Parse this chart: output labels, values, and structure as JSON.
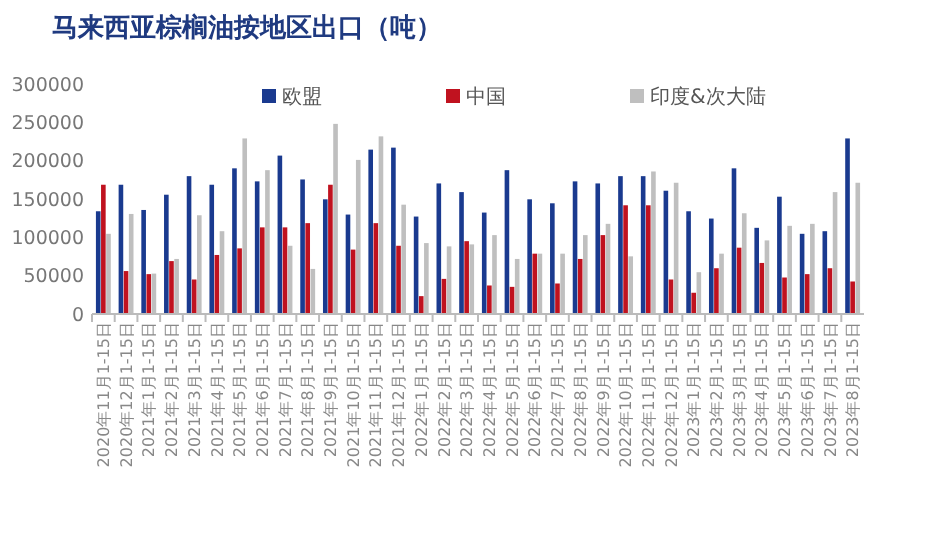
{
  "chart_data": {
    "type": "bar",
    "title": "马来西亚棕榈油按地区出口（吨）",
    "categories": [
      "2020年11月1-15日",
      "2020年12月1-15日",
      "2021年1月1-15日",
      "2021年2月1-15日",
      "2021年3月1-15日",
      "2021年4月1-15日",
      "2021年5月1-15日",
      "2021年6月1-15日",
      "2021年7月1-15日",
      "2021年8月1-15日",
      "2021年9月1-15日",
      "2021年10月1-15日",
      "2021年11月1-15日",
      "2021年12月1-15日",
      "2022年1月1-15日",
      "2022年2月1-15日",
      "2022年3月1-15日",
      "2022年4月1-15日",
      "2022年5月1-15日",
      "2022年6月1-15日",
      "2022年7月1-15日",
      "2022年8月1-15日",
      "2022年9月1-15日",
      "2022年10月1-15日",
      "2022年11月1-15日",
      "2022年12月1-15日",
      "2023年1月1-15日",
      "2023年2月1-15日",
      "2023年3月1-15日",
      "2023年4月1-15日",
      "2023年5月1-15日",
      "2023年6月1-15日",
      "2023年7月1-15日",
      "2023年8月1-15日"
    ],
    "series": [
      {
        "name": "欧盟",
        "color": "#1a3a8f",
        "values": [
          134000,
          168600,
          135700,
          155600,
          179800,
          168600,
          190000,
          173000,
          206600,
          175500,
          149600,
          129700,
          214400,
          217000,
          127100,
          170300,
          159000,
          132300,
          187600,
          149600,
          144400,
          173000,
          170300,
          179800,
          179800,
          160800,
          134000,
          124500,
          190000,
          112400,
          153000,
          104600,
          108000,
          229000
        ]
      },
      {
        "name": "中国",
        "color": "#c0121f",
        "values": [
          168600,
          56000,
          52000,
          69000,
          45000,
          77000,
          85600,
          113000,
          113000,
          118500,
          168600,
          84000,
          118500,
          89000,
          23300,
          45800,
          95000,
          37200,
          35400,
          78700,
          39800,
          71800,
          102900,
          141800,
          141800,
          45000,
          27700,
          59700,
          86500,
          66600,
          47600,
          52000,
          59700,
          42400
        ]
      },
      {
        "name": "印度&次大陆",
        "color": "#bfbfbf",
        "values": [
          104600,
          130500,
          52700,
          71800,
          128800,
          108000,
          229000,
          187600,
          89000,
          58800,
          248000,
          201000,
          231700,
          142600,
          92500,
          88200,
          90800,
          102900,
          71800,
          78700,
          78700,
          102900,
          117600,
          75200,
          185900,
          171200,
          54500,
          78700,
          131400,
          96000,
          115000,
          117600,
          159000,
          171200
        ]
      }
    ],
    "ylim": [
      0,
      300000
    ],
    "yticks": [
      0,
      50000,
      100000,
      150000,
      200000,
      250000,
      300000
    ],
    "grid": false,
    "legend": "top"
  }
}
